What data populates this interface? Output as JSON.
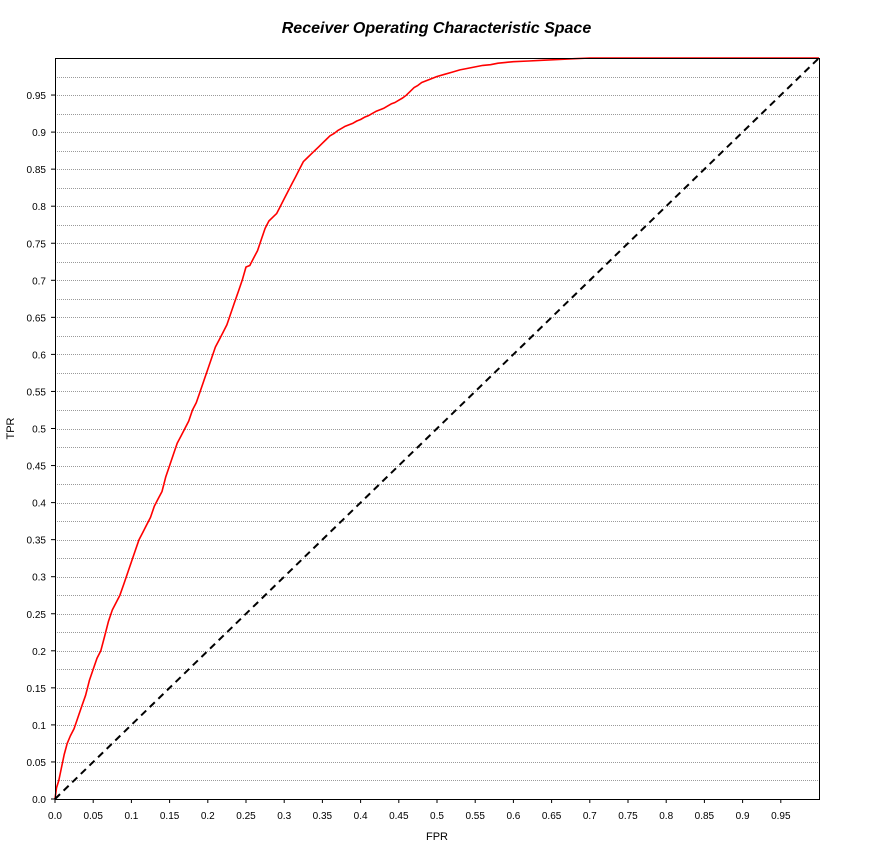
{
  "chart_data": {
    "type": "line",
    "title": "Receiver Operating Characteristic Space",
    "xlabel": "FPR",
    "ylabel": "TPR",
    "xlim": [
      0,
      1
    ],
    "ylim": [
      0,
      1
    ],
    "x_ticks": [
      "0.0",
      "0.05",
      "0.1",
      "0.15",
      "0.2",
      "0.25",
      "0.3",
      "0.35",
      "0.4",
      "0.45",
      "0.5",
      "0.55",
      "0.6",
      "0.65",
      "0.7",
      "0.75",
      "0.8",
      "0.85",
      "0.9",
      "0.95"
    ],
    "y_ticks": [
      "0.0",
      "0.05",
      "0.1",
      "0.15",
      "0.2",
      "0.25",
      "0.3",
      "0.35",
      "0.4",
      "0.45",
      "0.5",
      "0.55",
      "0.6",
      "0.65",
      "0.7",
      "0.75",
      "0.8",
      "0.85",
      "0.9",
      "0.95"
    ],
    "grid": "horizontal dotted every 0.025",
    "legend": "none",
    "series": [
      {
        "color": "#ff0000",
        "style": "solid",
        "x": [
          0.0,
          0.002,
          0.005,
          0.008,
          0.012,
          0.016,
          0.02,
          0.025,
          0.03,
          0.035,
          0.04,
          0.045,
          0.05,
          0.055,
          0.06,
          0.065,
          0.07,
          0.075,
          0.08,
          0.085,
          0.09,
          0.095,
          0.1,
          0.105,
          0.11,
          0.115,
          0.12,
          0.125,
          0.13,
          0.135,
          0.14,
          0.145,
          0.15,
          0.155,
          0.16,
          0.165,
          0.17,
          0.175,
          0.18,
          0.185,
          0.19,
          0.195,
          0.2,
          0.205,
          0.21,
          0.215,
          0.22,
          0.225,
          0.23,
          0.235,
          0.24,
          0.245,
          0.25,
          0.255,
          0.26,
          0.265,
          0.27,
          0.275,
          0.28,
          0.285,
          0.29,
          0.295,
          0.3,
          0.305,
          0.31,
          0.315,
          0.32,
          0.325,
          0.33,
          0.335,
          0.34,
          0.345,
          0.35,
          0.355,
          0.36,
          0.365,
          0.37,
          0.375,
          0.38,
          0.385,
          0.39,
          0.395,
          0.4,
          0.405,
          0.41,
          0.415,
          0.42,
          0.425,
          0.43,
          0.435,
          0.44,
          0.445,
          0.45,
          0.455,
          0.46,
          0.465,
          0.47,
          0.475,
          0.48,
          0.49,
          0.5,
          0.51,
          0.52,
          0.53,
          0.54,
          0.55,
          0.56,
          0.57,
          0.58,
          0.59,
          0.6,
          0.62,
          0.64,
          0.66,
          0.68,
          0.7,
          0.72,
          0.74,
          0.76,
          0.78,
          0.8,
          0.85,
          0.9,
          0.95,
          1.0
        ],
        "y": [
          0.0,
          0.015,
          0.025,
          0.04,
          0.06,
          0.075,
          0.085,
          0.095,
          0.11,
          0.125,
          0.14,
          0.16,
          0.175,
          0.19,
          0.2,
          0.22,
          0.24,
          0.255,
          0.265,
          0.275,
          0.29,
          0.305,
          0.32,
          0.335,
          0.35,
          0.36,
          0.37,
          0.38,
          0.395,
          0.405,
          0.415,
          0.435,
          0.45,
          0.465,
          0.48,
          0.49,
          0.5,
          0.51,
          0.525,
          0.535,
          0.55,
          0.565,
          0.58,
          0.595,
          0.61,
          0.62,
          0.63,
          0.64,
          0.655,
          0.67,
          0.685,
          0.7,
          0.718,
          0.72,
          0.73,
          0.74,
          0.755,
          0.77,
          0.78,
          0.785,
          0.79,
          0.8,
          0.81,
          0.82,
          0.83,
          0.84,
          0.85,
          0.86,
          0.865,
          0.87,
          0.875,
          0.88,
          0.885,
          0.89,
          0.895,
          0.898,
          0.902,
          0.905,
          0.908,
          0.91,
          0.912,
          0.915,
          0.917,
          0.92,
          0.922,
          0.925,
          0.928,
          0.93,
          0.932,
          0.935,
          0.938,
          0.94,
          0.943,
          0.946,
          0.95,
          0.955,
          0.96,
          0.963,
          0.967,
          0.971,
          0.975,
          0.978,
          0.981,
          0.984,
          0.986,
          0.988,
          0.99,
          0.991,
          0.993,
          0.994,
          0.995,
          0.996,
          0.997,
          0.998,
          0.999,
          1.0,
          1.0,
          1.0,
          1.0,
          1.0,
          1.0,
          1.0,
          1.0,
          1.0,
          1.0
        ]
      },
      {
        "color": "#000000",
        "style": "dashed",
        "x": [
          0,
          1
        ],
        "y": [
          0,
          1
        ]
      }
    ]
  }
}
